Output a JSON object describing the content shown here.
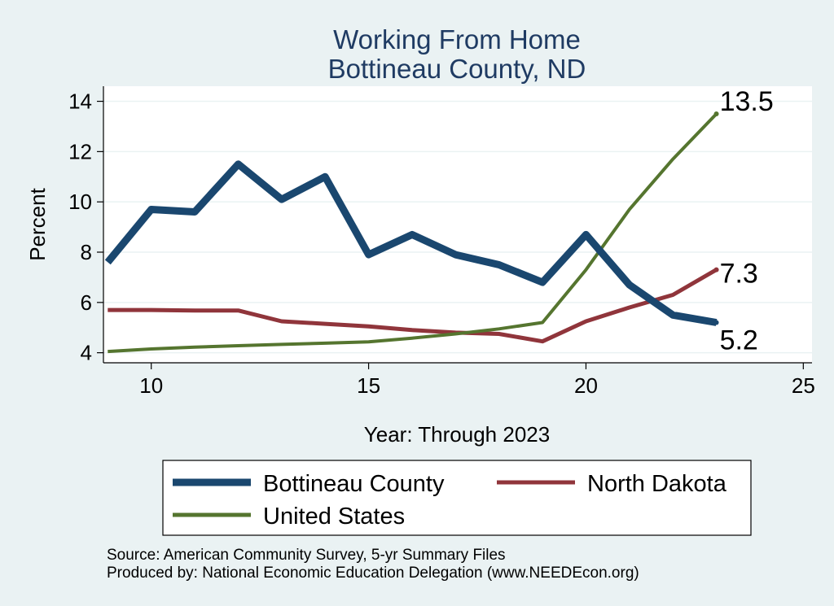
{
  "chart_data": {
    "type": "line",
    "title": "Working From Home",
    "subtitle": "Bottineau County, ND",
    "xlabel": "Year: Through 2023",
    "ylabel": "Percent",
    "xlim": [
      8.9,
      25.2
    ],
    "ylim": [
      3.6,
      14.6
    ],
    "x_ticks": [
      10,
      15,
      20,
      25
    ],
    "y_ticks": [
      4,
      6,
      8,
      10,
      12,
      14
    ],
    "grid": true,
    "legend_position": "bottom",
    "series": [
      {
        "name": "Bottineau County",
        "color": "#1a476f",
        "x": [
          9,
          10,
          11,
          12,
          13,
          14,
          15,
          16,
          17,
          18,
          19,
          20,
          21,
          22,
          23
        ],
        "y": [
          7.6,
          9.7,
          9.6,
          11.5,
          10.1,
          11.0,
          7.9,
          8.7,
          7.9,
          7.5,
          6.8,
          8.7,
          6.7,
          5.5,
          5.2
        ],
        "end_label": "5.2"
      },
      {
        "name": "North Dakota",
        "color": "#90353b",
        "x": [
          9,
          10,
          11,
          12,
          13,
          14,
          15,
          16,
          17,
          18,
          19,
          20,
          21,
          22,
          23
        ],
        "y": [
          5.7,
          5.7,
          5.68,
          5.68,
          5.25,
          5.15,
          5.05,
          4.9,
          4.8,
          4.75,
          4.45,
          5.25,
          5.8,
          6.3,
          7.3
        ],
        "end_label": "7.3"
      },
      {
        "name": "United States",
        "color": "#55752f",
        "x": [
          9,
          10,
          11,
          12,
          13,
          14,
          15,
          16,
          17,
          18,
          19,
          20,
          21,
          22,
          23
        ],
        "y": [
          4.05,
          4.15,
          4.22,
          4.28,
          4.33,
          4.38,
          4.43,
          4.58,
          4.75,
          4.95,
          5.2,
          7.3,
          9.7,
          11.7,
          13.5
        ],
        "end_label": "13.5"
      }
    ]
  },
  "notes": {
    "source": "Source: American Community Survey, 5-yr Summary Files",
    "produced": "Produced by: National Economic Education Delegation (www.NEEDEcon.org)"
  }
}
